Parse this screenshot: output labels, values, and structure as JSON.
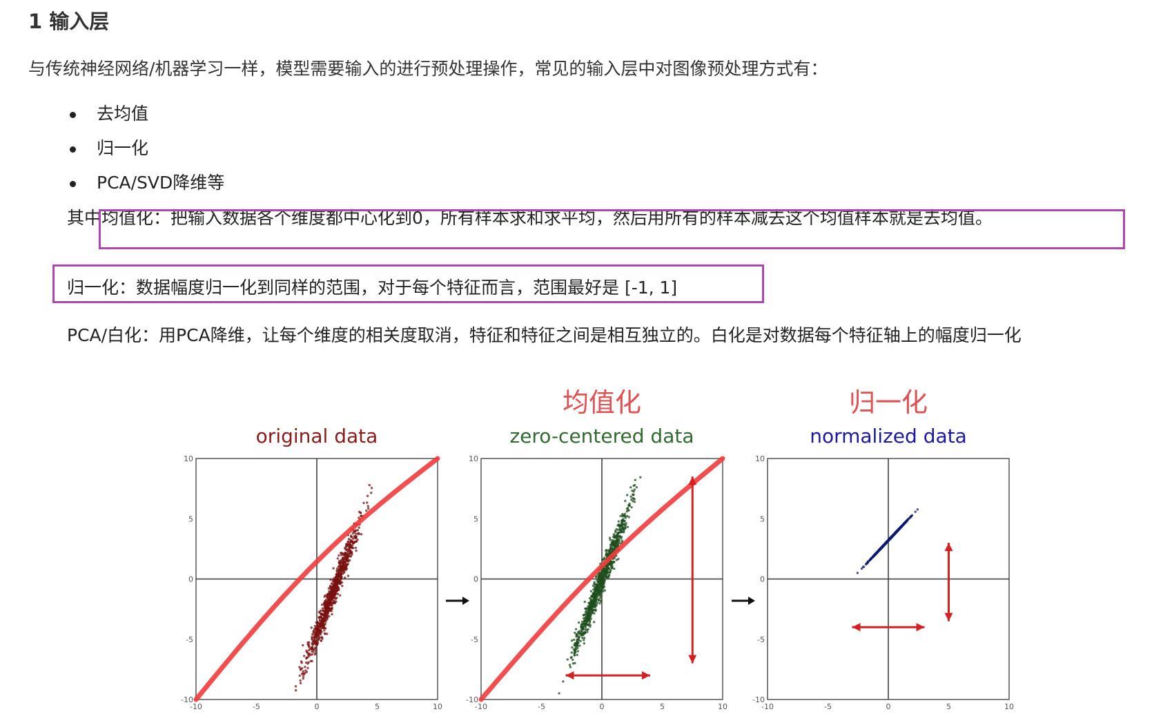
{
  "heading": "1 输入层",
  "intro": "与传统神经网络/机器学习一样，模型需要输入的进行预处理操作，常见的输入层中对图像预处理方式有：",
  "bullets": [
    "去均值",
    "归一化",
    "PCA/SVD降维等"
  ],
  "paragraphs": {
    "mean": "其中均值化：把输入数据各个维度都中心化到0，所有样本求和求平均，然后用所有的样本减去这个均值样本就是去均值。",
    "norm": "归一化：数据幅度归一化到同样的范围，对于每个特征而言，范围最好是 [-1, 1]",
    "pca": "PCA/白化：用PCA降维，让每个维度的相关度取消，特征和特征之间是相互独立的。白化是对数据每个特征轴上的幅度归一化"
  },
  "colors": {
    "highlight_box": "#b144b5",
    "fit_line": "#f03c3c",
    "original": "#7a1010",
    "zero_centered": "#1e4d1e",
    "normalized": "#0d1a70"
  },
  "figure": {
    "panels": [
      {
        "title_cn": "",
        "title_en": "original data",
        "title_color": "#8b1a1a"
      },
      {
        "title_cn": "均值化",
        "title_en": "zero-centered data",
        "title_color": "#2f6b2f"
      },
      {
        "title_cn": "归一化",
        "title_en": "normalized data",
        "title_color": "#1a1a9c"
      }
    ],
    "tick_labels": [
      "-10",
      "-5",
      "0",
      "5",
      "10"
    ],
    "axis_range": [
      -10,
      10
    ]
  }
}
